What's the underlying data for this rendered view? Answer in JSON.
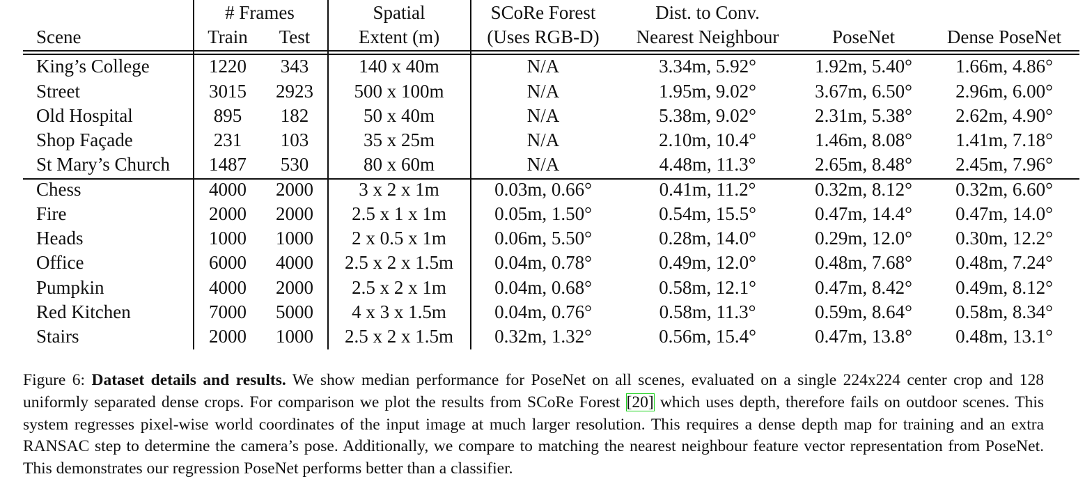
{
  "table": {
    "header": {
      "scene": "Scene",
      "frames_group": "# Frames",
      "train": "Train",
      "test": "Test",
      "spatial_l1": "Spatial",
      "spatial_l2": "Extent (m)",
      "score_l1": "SCoRe Forest",
      "score_l2": "(Uses RGB-D)",
      "nn_l1": "Dist. to Conv.",
      "nn_l2": "Nearest Neighbour",
      "posenet": "PoseNet",
      "dense_posenet": "Dense PoseNet"
    },
    "rows": [
      [
        "King’s College",
        "1220",
        "343",
        "140 x 40m",
        "N/A",
        "3.34m, 5.92°",
        "1.92m, 5.40°",
        "1.66m, 4.86°"
      ],
      [
        "Street",
        "3015",
        "2923",
        "500 x 100m",
        "N/A",
        "1.95m, 9.02°",
        "3.67m, 6.50°",
        "2.96m, 6.00°"
      ],
      [
        "Old Hospital",
        "895",
        "182",
        "50 x 40m",
        "N/A",
        "5.38m, 9.02°",
        "2.31m, 5.38°",
        "2.62m, 4.90°"
      ],
      [
        "Shop Façade",
        "231",
        "103",
        "35 x 25m",
        "N/A",
        "2.10m, 10.4°",
        "1.46m, 8.08°",
        "1.41m, 7.18°"
      ],
      [
        "St Mary’s Church",
        "1487",
        "530",
        "80 x 60m",
        "N/A",
        "4.48m, 11.3°",
        "2.65m, 8.48°",
        "2.45m, 7.96°"
      ],
      [
        "Chess",
        "4000",
        "2000",
        "3 x 2 x 1m",
        "0.03m, 0.66°",
        "0.41m, 11.2°",
        "0.32m, 8.12°",
        "0.32m, 6.60°"
      ],
      [
        "Fire",
        "2000",
        "2000",
        "2.5 x 1 x 1m",
        "0.05m, 1.50°",
        "0.54m, 15.5°",
        "0.47m, 14.4°",
        "0.47m, 14.0°"
      ],
      [
        "Heads",
        "1000",
        "1000",
        "2 x 0.5 x 1m",
        "0.06m, 5.50°",
        "0.28m, 14.0°",
        "0.29m, 12.0°",
        "0.30m, 12.2°"
      ],
      [
        "Office",
        "6000",
        "4000",
        "2.5 x 2 x 1.5m",
        "0.04m, 0.78°",
        "0.49m, 12.0°",
        "0.48m, 7.68°",
        "0.48m, 7.24°"
      ],
      [
        "Pumpkin",
        "4000",
        "2000",
        "2.5 x 2 x 1m",
        "0.04m, 0.68°",
        "0.58m, 12.1°",
        "0.47m, 8.42°",
        "0.49m, 8.12°"
      ],
      [
        "Red Kitchen",
        "7000",
        "5000",
        "4 x 3 x 1.5m",
        "0.04m, 0.76°",
        "0.58m, 11.3°",
        "0.59m, 8.64°",
        "0.58m, 8.34°"
      ],
      [
        "Stairs",
        "2000",
        "1000",
        "2.5 x 2 x 1.5m",
        "0.32m, 1.32°",
        "0.56m, 15.4°",
        "0.47m, 13.8°",
        "0.48m, 13.1°"
      ]
    ]
  },
  "caption": {
    "label": "Figure 6:",
    "title": "Dataset details and results.",
    "text_before_ref": "We show median performance for PoseNet on all scenes, evaluated on a single 224x224 center crop and 128 uniformly separated dense crops. For comparison we plot the results from SCoRe Forest",
    "ref": "[20]",
    "text_after_ref": "which uses depth, therefore fails on outdoor scenes. This system regresses pixel-wise world coordinates of the input image at much larger resolution. This requires a dense depth map for training and an extra RANSAC step to determine the camera’s pose. Additionally, we compare to matching the nearest neighbour feature vector representation from PoseNet. This demonstrates our regression PoseNet performs better than a classifier."
  }
}
